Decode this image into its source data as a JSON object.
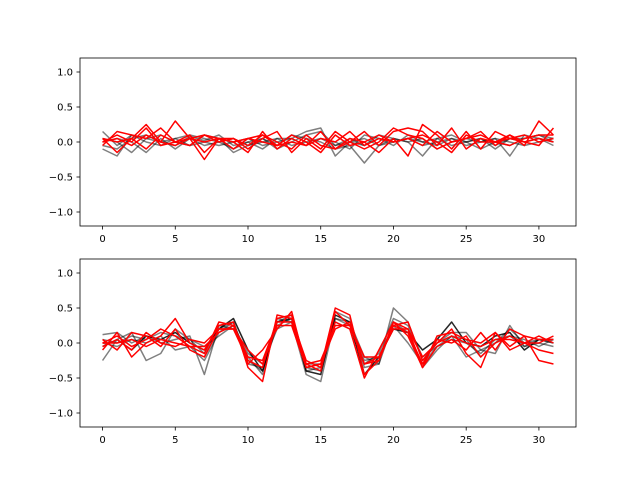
{
  "chart_data": [
    {
      "type": "line",
      "xlim": [
        -1.55,
        32.55
      ],
      "ylim": [
        -1.2,
        1.2
      ],
      "xticks": [
        0,
        5,
        10,
        15,
        20,
        25,
        30
      ],
      "xtick_labels": [
        "0",
        "5",
        "10",
        "15",
        "20",
        "25",
        "30"
      ],
      "yticks": [
        -1.0,
        -0.5,
        0.0,
        0.5,
        1.0
      ],
      "ytick_labels": [
        "−1.0",
        "−0.5",
        "0.0",
        "0.5",
        "1.0"
      ],
      "grid": false,
      "x": [
        0,
        1,
        2,
        3,
        4,
        5,
        6,
        7,
        8,
        9,
        10,
        11,
        12,
        13,
        14,
        15,
        16,
        17,
        18,
        19,
        20,
        21,
        22,
        23,
        24,
        25,
        26,
        27,
        28,
        29,
        30,
        31
      ],
      "series": [
        {
          "color": "#000000",
          "opacity": 0.5,
          "values": [
            0.15,
            -0.05,
            0.1,
            0.05,
            0.0,
            -0.05,
            0.08,
            0.02,
            0.1,
            -0.05,
            0.0,
            -0.1,
            0.05,
            0.05,
            0.15,
            0.2,
            -0.2,
            0.0,
            -0.05,
            0.05,
            0.0,
            0.05,
            0.0,
            -0.05,
            0.05,
            0.0,
            0.05,
            -0.05,
            0.05,
            0.05,
            0.1,
            0.05
          ]
        },
        {
          "color": "#000000",
          "opacity": 0.5,
          "values": [
            -0.1,
            -0.2,
            0.1,
            0.0,
            -0.05,
            0.05,
            0.1,
            0.05,
            0.0,
            -0.1,
            0.0,
            0.05,
            -0.05,
            0.1,
            0.05,
            0.0,
            -0.1,
            -0.05,
            -0.3,
            -0.05,
            0.05,
            0.0,
            -0.2,
            0.05,
            0.1,
            0.0,
            -0.1,
            0.0,
            -0.05,
            0.05,
            0.1,
            0.0
          ]
        },
        {
          "color": "#000000",
          "opacity": 0.5,
          "values": [
            0.05,
            0.0,
            -0.15,
            0.05,
            0.1,
            0.0,
            -0.05,
            0.1,
            0.05,
            -0.15,
            -0.05,
            0.05,
            -0.1,
            0.0,
            0.1,
            0.15,
            -0.05,
            0.05,
            -0.05,
            0.1,
            0.05,
            0.0,
            0.05,
            -0.1,
            0.0,
            0.05,
            0.0,
            0.05,
            -0.2,
            0.1,
            0.05,
            0.0
          ]
        },
        {
          "color": "#000000",
          "opacity": 0.5,
          "values": [
            0.0,
            0.05,
            0.0,
            -0.15,
            0.05,
            -0.1,
            0.05,
            -0.05,
            0.0,
            0.05,
            -0.05,
            0.0,
            0.05,
            -0.05,
            0.0,
            0.05,
            0.0,
            -0.1,
            0.1,
            0.05,
            -0.05,
            0.1,
            0.0,
            0.05,
            -0.05,
            0.0,
            0.05,
            -0.1,
            0.05,
            0.0,
            0.05,
            -0.05
          ]
        },
        {
          "color": "#000000",
          "opacity": 0.5,
          "values": [
            -0.05,
            -0.1,
            0.05,
            0.1,
            0.0,
            0.05,
            -0.05,
            0.0,
            -0.05,
            0.0,
            0.05,
            -0.05,
            0.0,
            0.05,
            -0.05,
            0.05,
            -0.05,
            0.0,
            0.05,
            -0.05,
            0.0,
            0.05,
            -0.05,
            0.0,
            0.05,
            -0.05,
            0.0,
            0.05,
            0.0,
            -0.05,
            0.0,
            0.05
          ]
        },
        {
          "color": "#ff0000",
          "opacity": 1.0,
          "values": [
            0.05,
            -0.15,
            0.05,
            0.25,
            0.0,
            0.3,
            0.05,
            -0.25,
            0.05,
            0.0,
            -0.15,
            0.15,
            -0.1,
            0.05,
            -0.05,
            0.15,
            -0.1,
            0.0,
            0.15,
            -0.05,
            0.15,
            0.2,
            0.15,
            -0.05,
            0.2,
            -0.1,
            0.05,
            0.0,
            0.1,
            -0.05,
            0.3,
            0.1
          ]
        },
        {
          "color": "#ff0000",
          "opacity": 1.0,
          "values": [
            0.0,
            0.1,
            0.0,
            0.2,
            -0.05,
            0.0,
            0.1,
            -0.15,
            0.05,
            -0.1,
            0.05,
            0.1,
            -0.05,
            0.1,
            0.0,
            -0.15,
            0.1,
            -0.05,
            0.0,
            -0.15,
            0.05,
            -0.2,
            0.25,
            0.1,
            -0.1,
            0.15,
            -0.1,
            0.15,
            0.05,
            0.0,
            -0.05,
            0.2
          ]
        },
        {
          "color": "#ff0000",
          "opacity": 1.0,
          "values": [
            -0.05,
            0.15,
            0.1,
            0.05,
            0.2,
            0.0,
            0.05,
            0.1,
            0.0,
            0.05,
            -0.1,
            0.05,
            0.15,
            -0.15,
            0.05,
            -0.1,
            0.15,
            0.0,
            -0.1,
            0.0,
            0.2,
            0.1,
            0.05,
            -0.1,
            0.0,
            0.05,
            0.15,
            -0.05,
            0.1,
            0.0,
            0.05,
            0.0
          ]
        },
        {
          "color": "#ff0000",
          "opacity": 1.0,
          "values": [
            0.05,
            0.0,
            0.05,
            -0.1,
            0.1,
            0.0,
            -0.05,
            0.1,
            0.05,
            0.0,
            0.05,
            0.0,
            -0.05,
            0.0,
            -0.05,
            0.05,
            0.0,
            0.15,
            -0.05,
            0.05,
            0.0,
            0.05,
            0.1,
            0.0,
            -0.15,
            0.1,
            0.0,
            0.0,
            0.05,
            0.1,
            0.0,
            0.05
          ]
        },
        {
          "color": "#ff0000",
          "opacity": 1.0,
          "values": [
            0.0,
            0.05,
            -0.05,
            0.1,
            0.0,
            -0.05,
            0.05,
            0.0,
            0.05,
            0.05,
            -0.05,
            0.1,
            0.0,
            -0.1,
            0.1,
            -0.05,
            -0.1,
            0.05,
            0.0,
            0.1,
            0.0,
            0.05,
            -0.05,
            0.15,
            0.0,
            0.05,
            0.1,
            0.0,
            -0.05,
            0.05,
            0.1,
            0.1
          ]
        }
      ]
    },
    {
      "type": "line",
      "xlim": [
        -1.55,
        32.55
      ],
      "ylim": [
        -1.2,
        1.2
      ],
      "xticks": [
        0,
        5,
        10,
        15,
        20,
        25,
        30
      ],
      "xtick_labels": [
        "0",
        "5",
        "10",
        "15",
        "20",
        "25",
        "30"
      ],
      "yticks": [
        -1.0,
        -0.5,
        0.0,
        0.5,
        1.0
      ],
      "ytick_labels": [
        "−1.0",
        "−0.5",
        "0.0",
        "0.5",
        "1.0"
      ],
      "grid": false,
      "x": [
        0,
        1,
        2,
        3,
        4,
        5,
        6,
        7,
        8,
        9,
        10,
        11,
        12,
        13,
        14,
        15,
        16,
        17,
        18,
        19,
        20,
        21,
        22,
        23,
        24,
        25,
        26,
        27,
        28,
        29,
        30,
        31
      ],
      "series": [
        {
          "color": "#000000",
          "opacity": 0.5,
          "values": [
            0.12,
            0.15,
            0.0,
            0.1,
            0.0,
            0.05,
            0.1,
            -0.45,
            0.25,
            0.2,
            -0.2,
            -0.45,
            0.35,
            0.3,
            -0.45,
            -0.55,
            0.35,
            0.3,
            -0.2,
            -0.3,
            0.5,
            0.3,
            -0.25,
            0.0,
            0.15,
            0.15,
            -0.1,
            0.0,
            0.2,
            0.0,
            0.05,
            0.0
          ]
        },
        {
          "color": "#000000",
          "opacity": 0.5,
          "values": [
            -0.25,
            0.05,
            0.15,
            -0.25,
            -0.15,
            0.2,
            0.05,
            -0.15,
            0.2,
            0.3,
            -0.3,
            -0.35,
            0.3,
            0.4,
            -0.4,
            -0.35,
            0.45,
            0.35,
            -0.35,
            -0.3,
            0.3,
            0.15,
            -0.35,
            -0.1,
            0.1,
            -0.2,
            -0.1,
            -0.15,
            0.25,
            -0.05,
            0.0,
            -0.05
          ]
        },
        {
          "color": "#000000",
          "opacity": 0.5,
          "values": [
            0.0,
            -0.05,
            0.05,
            0.0,
            0.1,
            -0.1,
            -0.05,
            -0.25,
            0.15,
            0.3,
            -0.25,
            -0.4,
            0.25,
            0.35,
            -0.35,
            -0.4,
            0.35,
            0.25,
            -0.25,
            -0.2,
            0.25,
            0.0,
            -0.3,
            -0.05,
            0.05,
            0.0,
            -0.15,
            0.05,
            0.1,
            -0.05,
            0.05,
            0.0
          ]
        },
        {
          "color": "#000000",
          "opacity": 0.85,
          "values": [
            -0.05,
            0.05,
            -0.1,
            0.1,
            0.05,
            0.15,
            0.0,
            -0.1,
            0.2,
            0.35,
            -0.1,
            -0.4,
            0.3,
            0.35,
            -0.4,
            -0.45,
            0.4,
            0.3,
            -0.45,
            -0.2,
            0.2,
            0.15,
            -0.1,
            0.05,
            0.3,
            0.0,
            -0.05,
            0.1,
            0.15,
            -0.1,
            0.05,
            0.05
          ]
        },
        {
          "color": "#000000",
          "opacity": 0.5,
          "values": [
            0.05,
            0.0,
            0.1,
            0.05,
            0.15,
            0.1,
            0.05,
            -0.05,
            0.1,
            0.25,
            -0.15,
            -0.3,
            0.2,
            0.3,
            -0.3,
            -0.3,
            0.3,
            0.2,
            -0.3,
            -0.15,
            0.35,
            0.25,
            -0.2,
            -0.05,
            0.1,
            0.05,
            -0.2,
            0.0,
            0.1,
            0.05,
            -0.05,
            0.05
          ]
        },
        {
          "color": "#ff0000",
          "opacity": 1.0,
          "values": [
            -0.1,
            0.15,
            -0.2,
            0.0,
            0.1,
            0.35,
            0.0,
            -0.1,
            0.25,
            0.3,
            -0.35,
            -0.55,
            0.4,
            0.35,
            -0.25,
            -0.35,
            0.5,
            0.4,
            -0.45,
            -0.25,
            0.3,
            0.1,
            -0.35,
            -0.05,
            0.05,
            -0.1,
            0.15,
            -0.1,
            0.2,
            0.1,
            -0.25,
            -0.3
          ]
        },
        {
          "color": "#ff0000",
          "opacity": 1.0,
          "values": [
            0.05,
            -0.1,
            0.15,
            0.1,
            -0.05,
            0.2,
            -0.1,
            -0.2,
            0.2,
            0.2,
            -0.25,
            -0.35,
            0.35,
            0.4,
            -0.3,
            -0.4,
            0.45,
            0.25,
            -0.3,
            -0.25,
            0.25,
            0.3,
            -0.25,
            0.0,
            0.2,
            -0.15,
            -0.35,
            0.15,
            -0.1,
            0.0,
            -0.1,
            -0.15
          ]
        },
        {
          "color": "#ff0000",
          "opacity": 1.0,
          "values": [
            0.0,
            0.1,
            -0.05,
            0.05,
            0.2,
            0.1,
            -0.05,
            -0.15,
            0.3,
            0.25,
            -0.3,
            -0.1,
            0.2,
            0.45,
            -0.35,
            -0.3,
            0.3,
            0.2,
            -0.5,
            -0.1,
            0.3,
            0.2,
            -0.35,
            0.1,
            0.15,
            0.05,
            0.0,
            0.15,
            -0.05,
            0.1,
            0.05,
            0.05
          ]
        },
        {
          "color": "#ff0000",
          "opacity": 1.0,
          "values": [
            0.0,
            0.0,
            0.05,
            -0.05,
            0.05,
            0.0,
            -0.05,
            -0.05,
            0.15,
            0.25,
            -0.2,
            -0.25,
            0.3,
            0.3,
            -0.3,
            -0.25,
            0.25,
            0.25,
            -0.2,
            -0.2,
            0.2,
            0.2,
            -0.2,
            0.0,
            0.1,
            0.0,
            -0.05,
            0.05,
            0.05,
            0.0,
            0.0,
            0.1
          ]
        },
        {
          "color": "#ff0000",
          "opacity": 1.0,
          "values": [
            -0.05,
            0.05,
            -0.1,
            0.15,
            0.0,
            -0.05,
            0.05,
            0.0,
            0.2,
            0.2,
            -0.1,
            -0.3,
            0.25,
            0.25,
            -0.35,
            -0.3,
            0.2,
            0.3,
            -0.3,
            -0.2,
            0.25,
            0.15,
            -0.3,
            0.05,
            0.0,
            0.1,
            -0.2,
            0.0,
            0.1,
            0.0,
            0.1,
            0.0
          ]
        }
      ]
    }
  ]
}
